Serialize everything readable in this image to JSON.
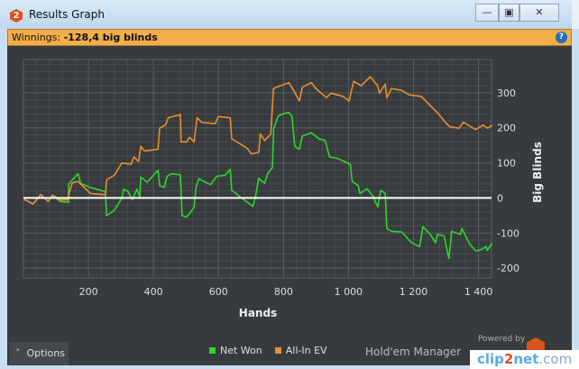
{
  "window": {
    "title": "Results Graph",
    "app_icon_text": "2",
    "buttons": [
      "minimize",
      "maximize",
      "close"
    ]
  },
  "summary": {
    "label": "Winnings:",
    "value": "-128,4 big blinds",
    "help_icon": "question-circle-icon",
    "bar_color": "#f2ae48"
  },
  "footer": {
    "options_label": "Options",
    "options_icon": "chevron-up-icon",
    "powered_by": "Powered by",
    "brand": "Hold'em Manager",
    "watermark": "clip2net.com"
  },
  "chart_data": {
    "type": "line",
    "xlabel": "Hands",
    "ylabel": "Big Blinds",
    "xlim": [
      0,
      1440
    ],
    "ylim": [
      -228,
      395
    ],
    "xticks": [
      200,
      400,
      600,
      800,
      1000,
      1200,
      1400
    ],
    "xtick_labels": [
      "200",
      "400",
      "600",
      "800",
      "1 000",
      "1 200",
      "1 400"
    ],
    "yticks": [
      -200,
      -100,
      0,
      100,
      200,
      300
    ],
    "ytick_labels": [
      "-200",
      "-100",
      "0",
      "100",
      "200",
      "300"
    ],
    "grid": true,
    "zero_line": true,
    "legend_position": "bottom",
    "series": [
      {
        "name": "Net Won",
        "color": "#2fd42f",
        "points": [
          [
            2,
            -4
          ],
          [
            30,
            -17
          ],
          [
            53,
            10
          ],
          [
            76,
            -10
          ],
          [
            90,
            8
          ],
          [
            113,
            -10
          ],
          [
            139,
            -12
          ],
          [
            139,
            40
          ],
          [
            159,
            60
          ],
          [
            168,
            69
          ],
          [
            176,
            42
          ],
          [
            206,
            30
          ],
          [
            252,
            18
          ],
          [
            256,
            -50
          ],
          [
            280,
            -35
          ],
          [
            303,
            0
          ],
          [
            308,
            25
          ],
          [
            322,
            18
          ],
          [
            335,
            -5
          ],
          [
            349,
            25
          ],
          [
            358,
            3
          ],
          [
            361,
            60
          ],
          [
            381,
            45
          ],
          [
            414,
            79
          ],
          [
            419,
            35
          ],
          [
            433,
            30
          ],
          [
            442,
            62
          ],
          [
            456,
            69
          ],
          [
            483,
            66
          ],
          [
            488,
            -50
          ],
          [
            502,
            -55
          ],
          [
            525,
            -27
          ],
          [
            531,
            30
          ],
          [
            539,
            55
          ],
          [
            576,
            38
          ],
          [
            594,
            61
          ],
          [
            622,
            66
          ],
          [
            636,
            82
          ],
          [
            641,
            22
          ],
          [
            664,
            5
          ],
          [
            706,
            -24
          ],
          [
            714,
            5
          ],
          [
            724,
            56
          ],
          [
            742,
            42
          ],
          [
            752,
            70
          ],
          [
            766,
            87
          ],
          [
            770,
            199
          ],
          [
            784,
            234
          ],
          [
            798,
            240
          ],
          [
            817,
            244
          ],
          [
            826,
            233
          ],
          [
            835,
            147
          ],
          [
            849,
            139
          ],
          [
            858,
            177
          ],
          [
            886,
            186
          ],
          [
            909,
            169
          ],
          [
            928,
            164
          ],
          [
            942,
            117
          ],
          [
            965,
            113
          ],
          [
            988,
            104
          ],
          [
            1006,
            95
          ],
          [
            1011,
            48
          ],
          [
            1030,
            35
          ],
          [
            1035,
            13
          ],
          [
            1057,
            26
          ],
          [
            1076,
            4
          ],
          [
            1090,
            -26
          ],
          [
            1099,
            22
          ],
          [
            1113,
            13
          ],
          [
            1118,
            -87
          ],
          [
            1132,
            -95
          ],
          [
            1164,
            -97
          ],
          [
            1192,
            -126
          ],
          [
            1219,
            -139
          ],
          [
            1229,
            -82
          ],
          [
            1252,
            -104
          ],
          [
            1268,
            -128
          ],
          [
            1273,
            -104
          ],
          [
            1294,
            -108
          ],
          [
            1303,
            -147
          ],
          [
            1309,
            -173
          ],
          [
            1317,
            -95
          ],
          [
            1344,
            -104
          ],
          [
            1349,
            -87
          ],
          [
            1372,
            -130
          ],
          [
            1391,
            -151
          ],
          [
            1409,
            -147
          ],
          [
            1423,
            -139
          ],
          [
            1427,
            -150
          ],
          [
            1442,
            -128.4
          ]
        ]
      },
      {
        "name": "All-In EV",
        "color": "#e88f2e",
        "points": [
          [
            2,
            -4
          ],
          [
            30,
            -17
          ],
          [
            53,
            10
          ],
          [
            76,
            -10
          ],
          [
            90,
            8
          ],
          [
            113,
            -5
          ],
          [
            139,
            -5
          ],
          [
            139,
            9
          ],
          [
            150,
            43
          ],
          [
            168,
            47
          ],
          [
            206,
            13
          ],
          [
            252,
            9
          ],
          [
            256,
            52
          ],
          [
            280,
            65
          ],
          [
            303,
            100
          ],
          [
            331,
            96
          ],
          [
            340,
            117
          ],
          [
            354,
            104
          ],
          [
            361,
            147
          ],
          [
            372,
            134
          ],
          [
            414,
            139
          ],
          [
            419,
            199
          ],
          [
            437,
            208
          ],
          [
            446,
            229
          ],
          [
            483,
            238
          ],
          [
            485,
            160
          ],
          [
            502,
            160
          ],
          [
            511,
            173
          ],
          [
            525,
            160
          ],
          [
            534,
            229
          ],
          [
            548,
            216
          ],
          [
            590,
            212
          ],
          [
            599,
            232
          ],
          [
            636,
            229
          ],
          [
            641,
            169
          ],
          [
            664,
            156
          ],
          [
            687,
            143
          ],
          [
            701,
            126
          ],
          [
            724,
            130
          ],
          [
            729,
            182
          ],
          [
            742,
            164
          ],
          [
            761,
            182
          ],
          [
            769,
            312
          ],
          [
            789,
            320
          ],
          [
            817,
            329
          ],
          [
            831,
            307
          ],
          [
            849,
            277
          ],
          [
            858,
            316
          ],
          [
            886,
            329
          ],
          [
            900,
            312
          ],
          [
            932,
            286
          ],
          [
            946,
            299
          ],
          [
            983,
            290
          ],
          [
            1002,
            277
          ],
          [
            1016,
            333
          ],
          [
            1039,
            320
          ],
          [
            1067,
            346
          ],
          [
            1090,
            320
          ],
          [
            1095,
            299
          ],
          [
            1113,
            325
          ],
          [
            1118,
            286
          ],
          [
            1132,
            312
          ],
          [
            1164,
            307
          ],
          [
            1187,
            294
          ],
          [
            1224,
            290
          ],
          [
            1247,
            268
          ],
          [
            1275,
            242
          ],
          [
            1298,
            216
          ],
          [
            1312,
            203
          ],
          [
            1340,
            199
          ],
          [
            1354,
            216
          ],
          [
            1391,
            195
          ],
          [
            1414,
            208
          ],
          [
            1428,
            199
          ],
          [
            1442,
            208
          ]
        ]
      }
    ]
  }
}
